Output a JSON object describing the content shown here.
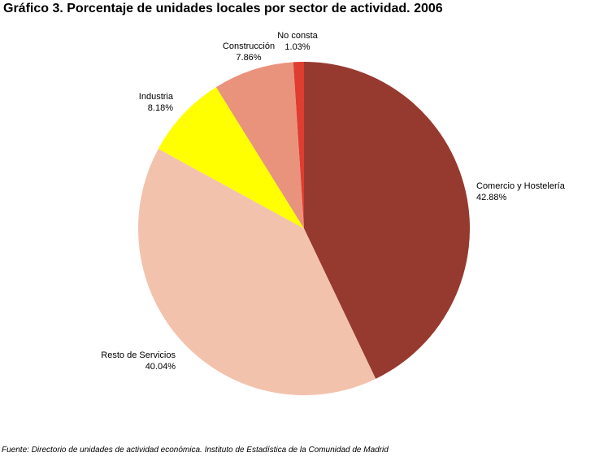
{
  "title": "Gráfico 3. Porcentaje de unidades locales por sector de actividad. 2006",
  "source": "Fuente: Directorio de unidades de actividad económica. Instituto de Estadística de la Comunidad de Madrid",
  "chart_data": {
    "type": "pie",
    "title": "Gráfico 3. Porcentaje de unidades locales por sector de actividad. 2006",
    "start_angle_deg": 0,
    "direction": "clockwise",
    "slices": [
      {
        "name": "Comercio y Hostelería",
        "value": 42.88,
        "label": "42.88%",
        "color": "#963a2f"
      },
      {
        "name": "Resto de Servicios",
        "value": 40.04,
        "label": "40.04%",
        "color": "#f3c2ad"
      },
      {
        "name": "Industria",
        "value": 8.18,
        "label": "8.18%",
        "color": "#ffff00"
      },
      {
        "name": "Construcción",
        "value": 7.86,
        "label": "7.86%",
        "color": "#ea937c"
      },
      {
        "name": "No consta",
        "value": 1.03,
        "label": "1.03%",
        "color": "#de3d30"
      }
    ]
  }
}
